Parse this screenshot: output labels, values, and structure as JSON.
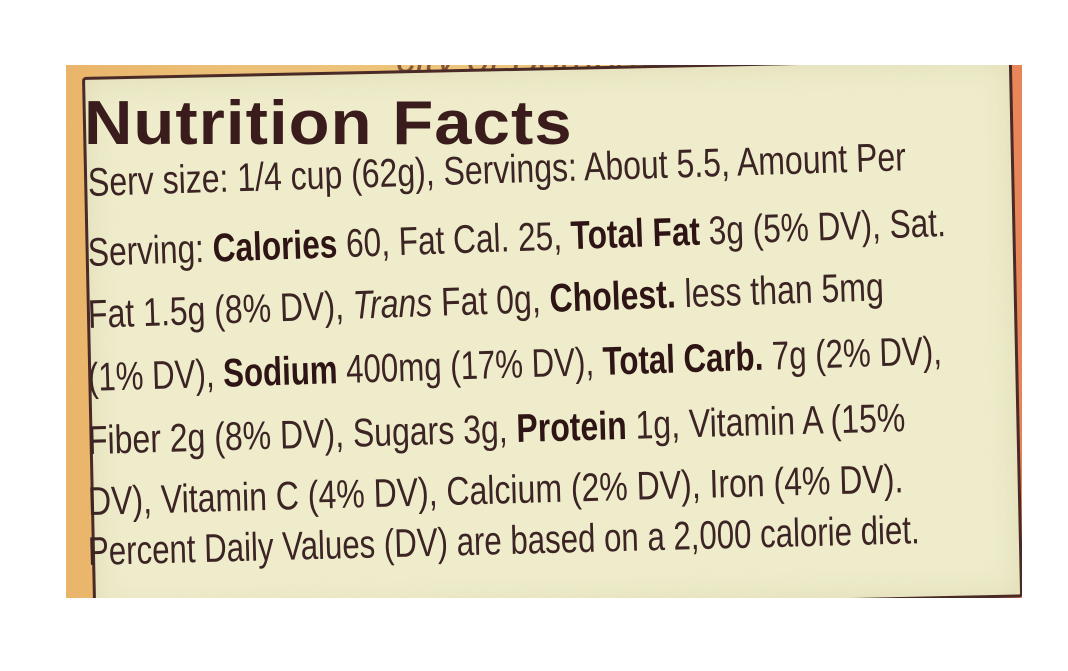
{
  "top_partial_text": "city of Bombay.",
  "title": "Nutrition Facts",
  "colors": {
    "panel": "#eeeccb",
    "text": "#3c2424",
    "border": "#4a2a26",
    "surround": "#ecc27a"
  },
  "lines": [
    [
      {
        "t": "Serv size: 1/4 cup (62g), Servings: About 5.5, Amount Per",
        "s": "n"
      }
    ],
    [
      {
        "t": "Serving: ",
        "s": "n"
      },
      {
        "t": "Calories",
        "s": "b"
      },
      {
        "t": " 60, Fat Cal. 25, ",
        "s": "n"
      },
      {
        "t": "Total Fat",
        "s": "b"
      },
      {
        "t": " 3g (5% DV), Sat.",
        "s": "n"
      }
    ],
    [
      {
        "t": "Fat 1.5g (8% DV), ",
        "s": "n"
      },
      {
        "t": "Trans",
        "s": "i"
      },
      {
        "t": " Fat 0g, ",
        "s": "n"
      },
      {
        "t": "Cholest.",
        "s": "b"
      },
      {
        "t": " less than 5mg",
        "s": "n"
      }
    ],
    [
      {
        "t": "(1% DV), ",
        "s": "n"
      },
      {
        "t": "Sodium",
        "s": "b"
      },
      {
        "t": " 400mg (17% DV), ",
        "s": "n"
      },
      {
        "t": "Total Carb.",
        "s": "b"
      },
      {
        "t": " 7g (2% DV),",
        "s": "n"
      }
    ],
    [
      {
        "t": "Fiber 2g (8% DV), Sugars 3g, ",
        "s": "n"
      },
      {
        "t": "Protein",
        "s": "b"
      },
      {
        "t": " 1g, Vitamin A (15%",
        "s": "n"
      }
    ],
    [
      {
        "t": "DV), Vitamin C (4% DV), Calcium (2% DV), Iron (4% DV).",
        "s": "n"
      }
    ],
    [
      {
        "t": "Percent Daily Values (DV) are based on a 2,000 calorie diet.",
        "s": "n"
      }
    ]
  ]
}
